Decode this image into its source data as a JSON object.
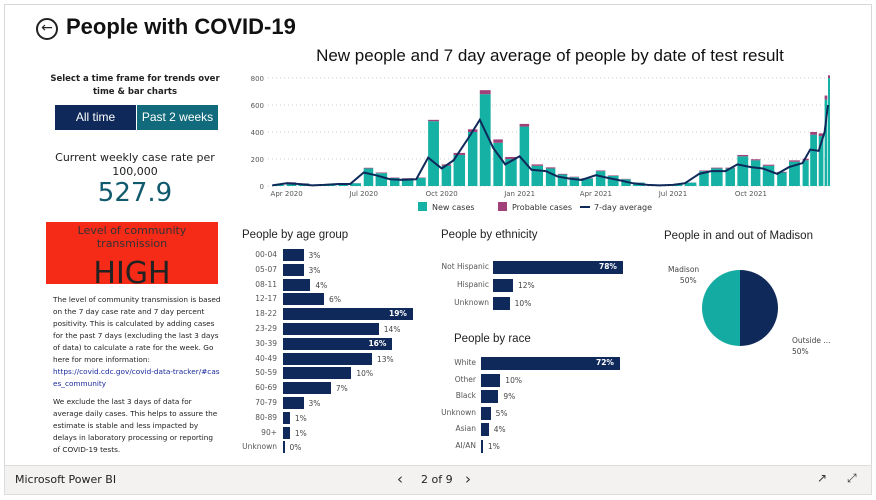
{
  "header": {
    "title": "People with COVID-19",
    "back_icon": "back-arrow-icon"
  },
  "controls": {
    "prompt": "Select a time frame for trends over time & bar charts",
    "all_time": "All time",
    "past_2_weeks": "Past 2 weeks"
  },
  "rate": {
    "label": "Current weekly case rate per 100,000",
    "value": "527.9"
  },
  "transmission": {
    "label": "Level of community transmission",
    "value": "HIGH",
    "color": "#f52a17"
  },
  "info": {
    "para1": "The level of community transmission is based on the 7 day case rate and 7 day percent positivity. This is calculated by adding cases for the past 7 days (excluding the last 3 days of data) to calculate a rate for the week. Go here for more information:",
    "link": "https://covid.cdc.gov/covid-data-tracker/#cases_community",
    "para2": "We exclude the last 3 days of data for average daily cases. This helps to assure the estimate is stable and less impacted by delays in laboratory processing or reporting of COVID-19 tests."
  },
  "footer": {
    "app": "Microsoft Power BI",
    "page": "2 of 9"
  },
  "chart_data": [
    {
      "type": "bar+line",
      "title": "New people and 7 day average of people by date of test result",
      "ylim": [
        0,
        800
      ],
      "yticks": [
        "0",
        "200",
        "400",
        "600",
        "800"
      ],
      "xticks": [
        "Apr 2020",
        "Jul 2020",
        "Oct 2020",
        "Jan 2021",
        "Apr 2021",
        "Jul 2021",
        "Oct 2021"
      ],
      "xtick_dates": [
        "2020-04-01",
        "2020-07-01",
        "2020-10-01",
        "2021-01-01",
        "2021-04-01",
        "2021-07-01",
        "2021-10-01"
      ],
      "xlim": [
        "2020-03-10",
        "2021-12-31"
      ],
      "legend": [
        "New cases",
        "Probable cases",
        "7-day average"
      ],
      "legend_position": "bottom",
      "colors": {
        "new": "#14b1a4",
        "probable": "#a0417a",
        "avg": "#0f2a5a"
      },
      "dates": [
        "2020-03-15",
        "2020-04-01",
        "2020-04-15",
        "2020-05-01",
        "2020-05-15",
        "2020-06-01",
        "2020-06-15",
        "2020-07-01",
        "2020-07-15",
        "2020-08-01",
        "2020-08-15",
        "2020-09-01",
        "2020-09-15",
        "2020-10-01",
        "2020-10-15",
        "2020-11-01",
        "2020-11-15",
        "2020-12-01",
        "2020-12-15",
        "2021-01-01",
        "2021-01-15",
        "2021-02-01",
        "2021-02-15",
        "2021-03-01",
        "2021-03-15",
        "2021-04-01",
        "2021-04-15",
        "2021-05-01",
        "2021-05-15",
        "2021-06-01",
        "2021-06-15",
        "2021-07-01",
        "2021-07-15",
        "2021-08-01",
        "2021-08-15",
        "2021-09-01",
        "2021-09-15",
        "2021-10-01",
        "2021-10-15",
        "2021-11-01",
        "2021-11-15",
        "2021-12-01",
        "2021-12-10",
        "2021-12-20",
        "2021-12-27",
        "2021-12-31"
      ],
      "avg": [
        5,
        20,
        15,
        5,
        8,
        15,
        15,
        100,
        80,
        50,
        45,
        50,
        210,
        130,
        190,
        350,
        490,
        280,
        160,
        220,
        120,
        110,
        70,
        55,
        45,
        80,
        60,
        40,
        20,
        8,
        5,
        8,
        20,
        90,
        110,
        110,
        160,
        140,
        130,
        90,
        140,
        170,
        270,
        260,
        400,
        600
      ],
      "new_cases": [
        8,
        25,
        18,
        8,
        10,
        20,
        20,
        130,
        95,
        60,
        55,
        60,
        480,
        150,
        230,
        400,
        680,
        320,
        200,
        440,
        150,
        130,
        85,
        65,
        55,
        110,
        75,
        50,
        25,
        10,
        8,
        10,
        25,
        110,
        130,
        130,
        220,
        190,
        150,
        100,
        180,
        190,
        380,
        370,
        640,
        800
      ],
      "probable": [
        0,
        3,
        2,
        0,
        0,
        1,
        1,
        5,
        5,
        3,
        3,
        3,
        10,
        10,
        15,
        20,
        30,
        25,
        15,
        20,
        10,
        8,
        5,
        4,
        3,
        5,
        4,
        3,
        1,
        0,
        0,
        0,
        1,
        5,
        6,
        6,
        10,
        8,
        8,
        5,
        10,
        12,
        20,
        20,
        30,
        20
      ]
    },
    {
      "type": "bar",
      "title": "People by age group",
      "categories": [
        "00-04",
        "05-07",
        "08-11",
        "12-17",
        "18-22",
        "23-29",
        "30-39",
        "40-49",
        "50-59",
        "60-69",
        "70-79",
        "80-89",
        "90+",
        "Unknown"
      ],
      "values": [
        3,
        3,
        4,
        6,
        19,
        14,
        16,
        13,
        10,
        7,
        3,
        1,
        1,
        0
      ],
      "labels": [
        "3%",
        "3%",
        "4%",
        "6%",
        "19%",
        "14%",
        "16%",
        "13%",
        "10%",
        "7%",
        "3%",
        "1%",
        "1%",
        "0%"
      ]
    },
    {
      "type": "bar",
      "title": "People by ethnicity",
      "categories": [
        "Not Hispanic",
        "Hispanic",
        "Unknown"
      ],
      "values": [
        78,
        12,
        10
      ],
      "labels": [
        "78%",
        "12%",
        "10%"
      ]
    },
    {
      "type": "bar",
      "title": "People by race",
      "categories": [
        "White",
        "Other",
        "Black",
        "Unknown",
        "Asian",
        "AI/AN"
      ],
      "values": [
        72,
        10,
        9,
        5,
        4,
        1
      ],
      "labels": [
        "72%",
        "10%",
        "9%",
        "5%",
        "4%",
        "1%"
      ]
    },
    {
      "type": "pie",
      "title": "People in and out of Madison",
      "categories": [
        "Madison",
        "Outside ..."
      ],
      "values": [
        50,
        50
      ],
      "labels": [
        "50%",
        "50%"
      ],
      "colors": [
        "#0f2a5a",
        "#14aba2"
      ]
    }
  ]
}
